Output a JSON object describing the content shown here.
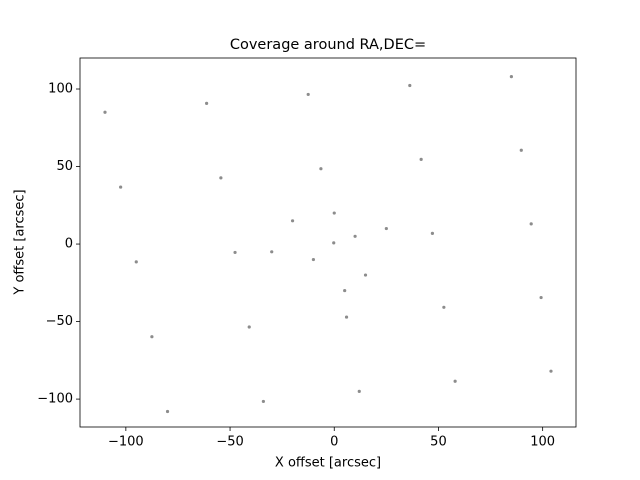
{
  "chart_data": {
    "type": "scatter",
    "title": "Coverage around RA,DEC=",
    "x_label": "X offset [arcsec]",
    "y_label": "Y offset [arcsec]",
    "color": "#000000",
    "grid": false,
    "xlim": [
      -122,
      116
    ],
    "ylim": [
      -118,
      120
    ],
    "xticks": [
      {
        "value": -100,
        "label": "−100"
      },
      {
        "value": -50,
        "label": "−50"
      },
      0,
      50,
      100
    ],
    "yticks": [
      {
        "value": -100,
        "label": "−100"
      },
      {
        "value": -50,
        "label": "−50"
      },
      0,
      50,
      100
    ],
    "x": [
      -110,
      -61.25,
      -12.5,
      36.25,
      85,
      -102.5,
      -54.4,
      -6.4,
      41.7,
      89.75,
      -95,
      -47.6,
      -0.25,
      47.1,
      94.5,
      -87.5,
      -40.8,
      5.9,
      52.6,
      99.25,
      -80,
      -34,
      12,
      58,
      104,
      -10,
      10,
      -20,
      15,
      0,
      25,
      -30,
      5
    ],
    "y": [
      85,
      90.75,
      96.5,
      102.25,
      108,
      36.75,
      42.7,
      48.6,
      54.6,
      60.5,
      -11.5,
      -5.4,
      0.75,
      6.9,
      13,
      -59.75,
      -53.5,
      -47.1,
      -40.8,
      -34.5,
      -108,
      -101.5,
      -95,
      -88.5,
      -82,
      -10,
      5,
      15,
      -20,
      20,
      10,
      -5,
      -30
    ]
  }
}
